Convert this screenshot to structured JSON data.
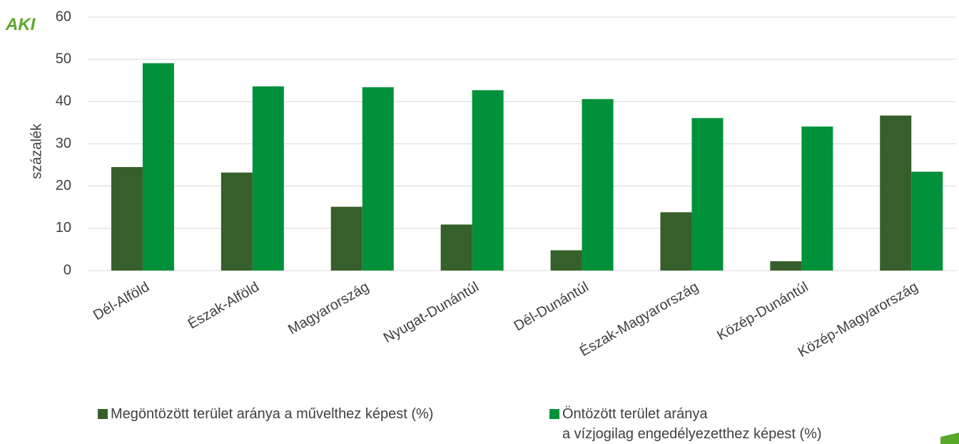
{
  "logo": "AKI",
  "chart_data": {
    "type": "bar",
    "y_label": "százalék",
    "categories": [
      "Dél-Alföld",
      "Észak-Alföld",
      "Magyarország",
      "Nyugat-Dunántúl",
      "Dél-Dunántúl",
      "Észak-Magyarország",
      "Közép-Dunántúl",
      "Közép-Magyarország"
    ],
    "series": [
      {
        "name": "Megöntözött terület aránya a művelthez képest (%)",
        "color": "#375f2b",
        "values": [
          24.5,
          23.2,
          15.1,
          10.9,
          4.8,
          13.8,
          2.2,
          36.7
        ]
      },
      {
        "name": "Öntözött terület aránya\na vízjogilag engedélyezetthez képest (%)",
        "color": "#00913a",
        "values": [
          49.1,
          43.6,
          43.4,
          42.7,
          40.6,
          36.1,
          34.1,
          23.4
        ]
      }
    ],
    "ylim": [
      0,
      60
    ],
    "yticks": [
      0,
      10,
      20,
      30,
      40,
      50,
      60
    ],
    "grid": true,
    "legend": "bottom"
  }
}
